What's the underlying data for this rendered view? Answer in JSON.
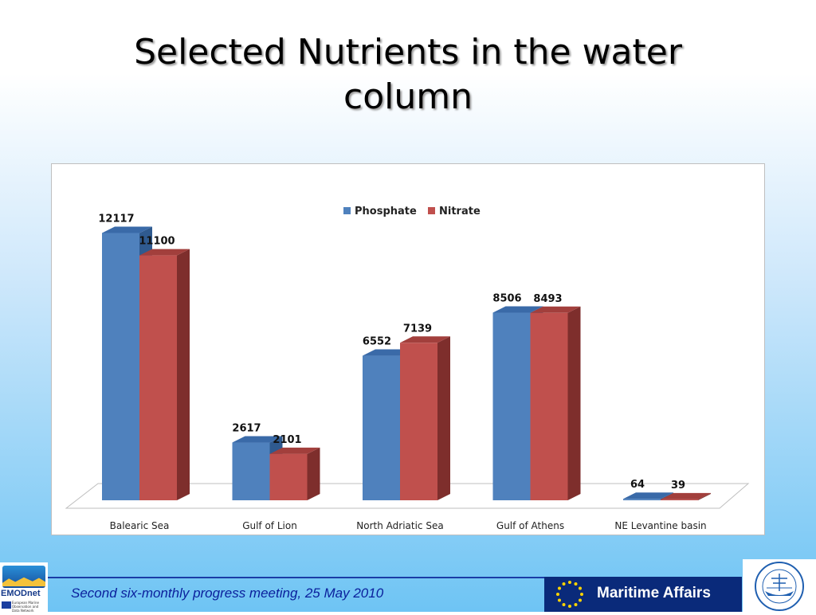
{
  "slide": {
    "title_line1": "Selected Nutrients in the water",
    "title_line2": "column",
    "footer": "Second six-monthly progress meeting, 25 May 2010",
    "logos": {
      "emodnet_name": "EMODnet",
      "emodnet_subtitle": [
        "European Marine",
        "Observation and",
        "Data Network"
      ],
      "maritime_label": "Maritime Affairs"
    }
  },
  "chart_data": {
    "type": "bar",
    "style": "3d-clustered-column",
    "categories": [
      "Balearic Sea",
      "Gulf of Lion",
      "North Adriatic Sea",
      "Gulf of Athens",
      "NE Levantine basin"
    ],
    "series": [
      {
        "name": "Phosphate",
        "values": [
          12117,
          2617,
          6552,
          8506,
          64
        ],
        "color": "#4f81bd",
        "side_color": "#2f5a8f",
        "top_color": "#3a6aa8"
      },
      {
        "name": "Nitrate",
        "values": [
          11100,
          2101,
          7139,
          8493,
          39
        ],
        "color": "#c0504d",
        "side_color": "#7e2e2c",
        "top_color": "#a23f3c"
      }
    ],
    "ylim": [
      0,
      13000
    ],
    "legend_position": "top-center",
    "data_labels": true,
    "grid": false
  }
}
